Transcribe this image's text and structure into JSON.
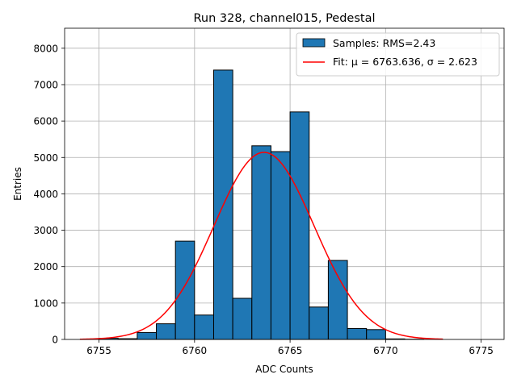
{
  "chart_data": {
    "type": "bar",
    "title": "Run 328, channel015, Pedestal",
    "xlabel": "ADC Counts",
    "ylabel": "Entries",
    "xlim": [
      6753.2,
      6776.2
    ],
    "ylim": [
      0,
      8550
    ],
    "grid": true,
    "legend_position": "top-right",
    "x_ticks": [
      6755,
      6760,
      6765,
      6770,
      6775
    ],
    "y_ticks": [
      0,
      1000,
      2000,
      3000,
      4000,
      5000,
      6000,
      7000,
      8000
    ],
    "series": [
      {
        "name": "Samples: RMS=2.43",
        "kind": "histogram",
        "color": "#1f77b4",
        "bin_width": 1,
        "bins": [
          {
            "x0": 6755,
            "value": 30
          },
          {
            "x0": 6756,
            "value": 20
          },
          {
            "x0": 6757,
            "value": 190
          },
          {
            "x0": 6758,
            "value": 430
          },
          {
            "x0": 6759,
            "value": 2700
          },
          {
            "x0": 6760,
            "value": 670
          },
          {
            "x0": 6761,
            "value": 7400
          },
          {
            "x0": 6762,
            "value": 1130
          },
          {
            "x0": 6763,
            "value": 5320
          },
          {
            "x0": 6764,
            "value": 5160
          },
          {
            "x0": 6765,
            "value": 6250
          },
          {
            "x0": 6766,
            "value": 890
          },
          {
            "x0": 6767,
            "value": 2170
          },
          {
            "x0": 6768,
            "value": 300
          },
          {
            "x0": 6769,
            "value": 270
          },
          {
            "x0": 6770,
            "value": 15
          },
          {
            "x0": 6771,
            "value": 5
          }
        ]
      },
      {
        "name": "Fit: μ = 6763.636, σ = 2.623",
        "kind": "gaussian_fit",
        "color": "#ff0000",
        "mu": 6763.636,
        "sigma": 2.623,
        "amplitude": 5140,
        "x_range": [
          6754,
          6773
        ]
      }
    ]
  }
}
